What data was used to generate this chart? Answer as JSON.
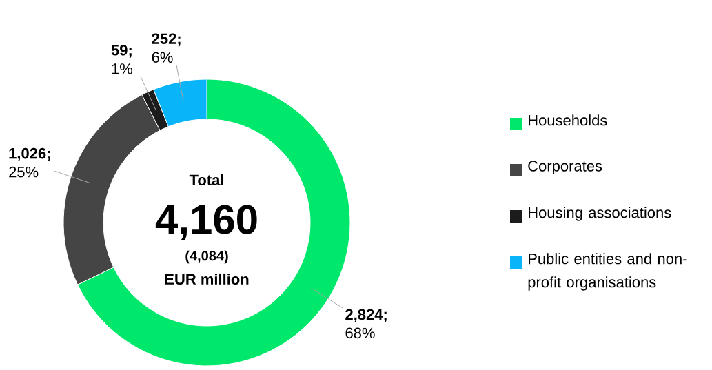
{
  "chart_data": {
    "type": "donut",
    "categories": [
      "Households",
      "Corporates",
      "Housing associations",
      "Public entities and non-profit organisations"
    ],
    "values": [
      2824,
      1026,
      59,
      252
    ],
    "colors": [
      "#00e86c",
      "#454545",
      "#1c1c1c",
      "#0ab4f8"
    ],
    "value_labels": [
      "**2,824;** 68%",
      "**1,026;** 25%",
      "**59;** 1%",
      "**252;** 6%"
    ],
    "annotations": [
      "Total",
      "4,160",
      "(4,084)",
      "EUR million"
    ],
    "legend": "right"
  }
}
